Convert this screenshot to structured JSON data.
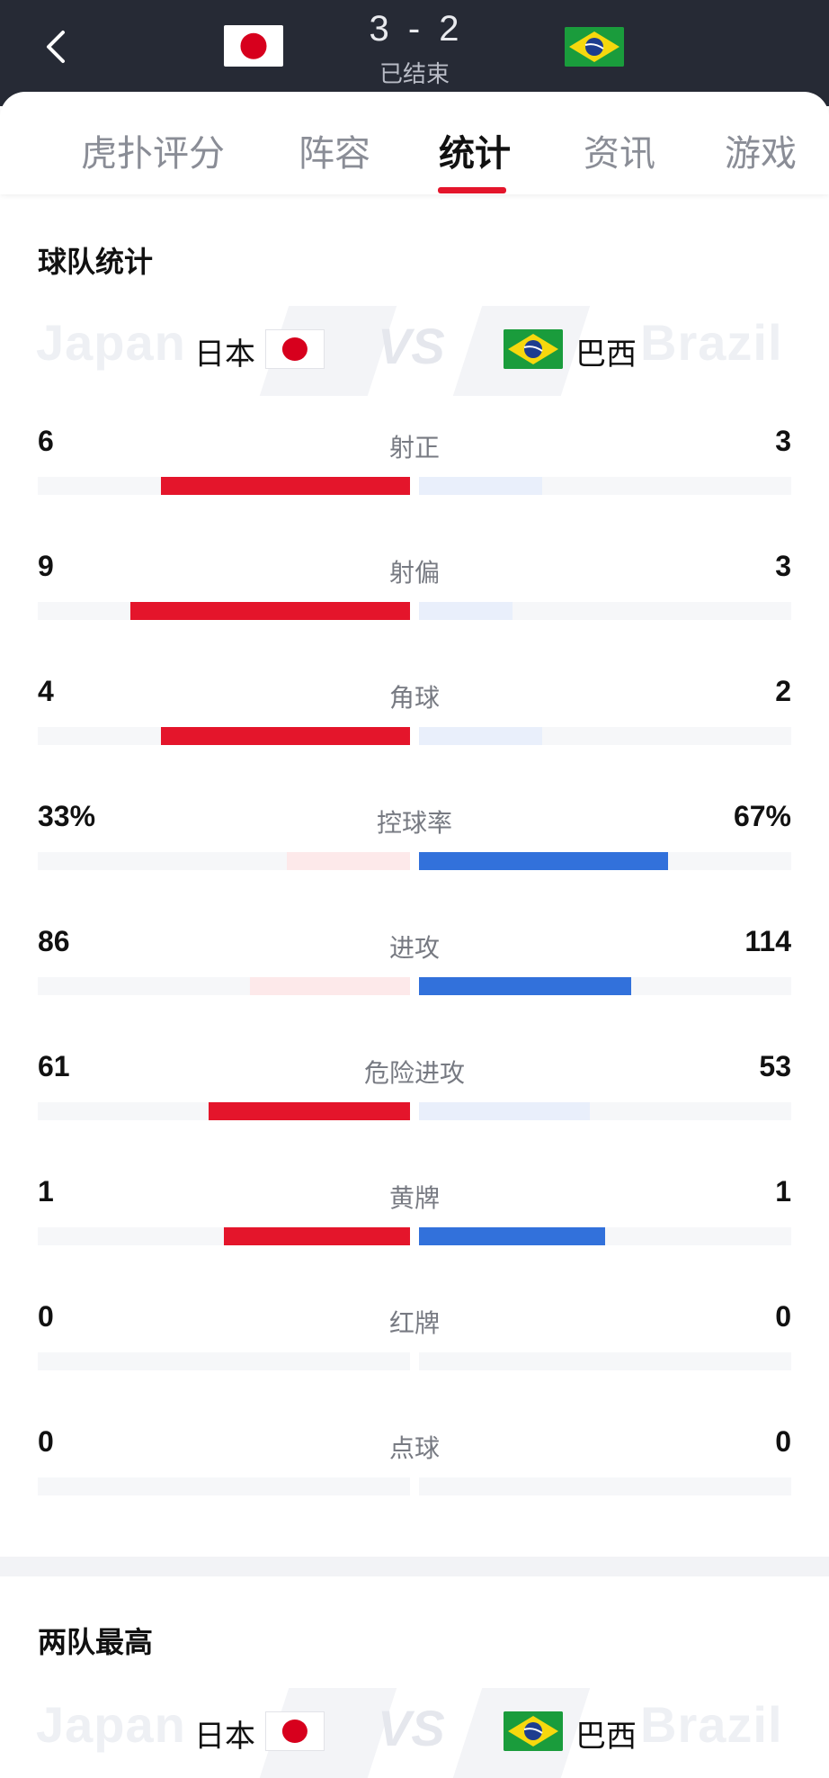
{
  "header": {
    "score_home": "3",
    "score_sep": "-",
    "score_away": "2",
    "status": "已结束"
  },
  "tabs": [
    "虎扑评分",
    "阵容",
    "统计",
    "资讯",
    "游戏"
  ],
  "active_tab": 2,
  "team_stats": {
    "title": "球队统计",
    "home_name": "日本",
    "away_name": "巴西",
    "home_watermark": "Japan",
    "away_watermark": "Brazil",
    "vs": "VS",
    "rows": [
      {
        "label": "射正",
        "home": "6",
        "away": "3",
        "home_pct": 0.67,
        "away_pct": 0.33,
        "leader": "home"
      },
      {
        "label": "射偏",
        "home": "9",
        "away": "3",
        "home_pct": 0.75,
        "away_pct": 0.25,
        "leader": "home"
      },
      {
        "label": "角球",
        "home": "4",
        "away": "2",
        "home_pct": 0.67,
        "away_pct": 0.33,
        "leader": "home"
      },
      {
        "label": "控球率",
        "home": "33%",
        "away": "67%",
        "home_pct": 0.33,
        "away_pct": 0.67,
        "leader": "away"
      },
      {
        "label": "进攻",
        "home": "86",
        "away": "114",
        "home_pct": 0.43,
        "away_pct": 0.57,
        "leader": "away"
      },
      {
        "label": "危险进攻",
        "home": "61",
        "away": "53",
        "home_pct": 0.54,
        "away_pct": 0.46,
        "leader": "home"
      },
      {
        "label": "黄牌",
        "home": "1",
        "away": "1",
        "home_pct": 0.5,
        "away_pct": 0.5,
        "leader": "both"
      },
      {
        "label": "红牌",
        "home": "0",
        "away": "0",
        "home_pct": 0,
        "away_pct": 0,
        "leader": "none"
      },
      {
        "label": "点球",
        "home": "0",
        "away": "0",
        "home_pct": 0,
        "away_pct": 0,
        "leader": "none"
      }
    ]
  },
  "top_players": {
    "title": "两队最高",
    "home_name": "日本",
    "away_name": "巴西"
  },
  "colors": {
    "home_strong": "#e4152b",
    "home_weak": "#fde9ea",
    "away_strong": "#3271db",
    "away_weak": "#e9effb",
    "header_bg": "#262a35"
  }
}
